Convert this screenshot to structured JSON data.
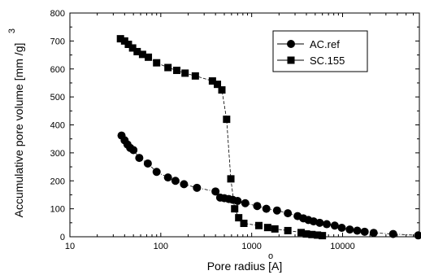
{
  "chart_data": {
    "type": "scatter",
    "x_scale": "log",
    "xlim": [
      10,
      70000
    ],
    "ylim": [
      0,
      800
    ],
    "xlabel": "Pore radius [A]",
    "xlabel_accent": "o",
    "ylabel": "Accumulative pore volume [mm /g]",
    "ylabel_superscript": "3",
    "x_ticks": [
      {
        "value": 10,
        "label": "10"
      },
      {
        "value": 100,
        "label": "100"
      },
      {
        "value": 1000,
        "label": "1000"
      },
      {
        "value": 10000,
        "label": "10000"
      }
    ],
    "y_ticks": [
      {
        "value": 0,
        "label": "0"
      },
      {
        "value": 100,
        "label": "100"
      },
      {
        "value": 200,
        "label": "200"
      },
      {
        "value": 300,
        "label": "300"
      },
      {
        "value": 400,
        "label": "400"
      },
      {
        "value": 500,
        "label": "500"
      },
      {
        "value": 600,
        "label": "600"
      },
      {
        "value": 700,
        "label": "700"
      },
      {
        "value": 800,
        "label": "800"
      }
    ],
    "grid": false,
    "legend_position": "top-right",
    "series": [
      {
        "name": "AC.ref",
        "marker": "circle",
        "line_style": "dash-dot",
        "color": "#000000",
        "x": [
          37,
          40,
          43,
          46,
          50,
          58,
          72,
          90,
          120,
          145,
          180,
          250,
          400,
          450,
          500,
          560,
          620,
          700,
          850,
          1150,
          1450,
          1900,
          2500,
          3200,
          3700,
          4200,
          4800,
          5600,
          6700,
          8200,
          9800,
          12000,
          14500,
          17500,
          22000,
          36000,
          68000
        ],
        "y": [
          362,
          345,
          330,
          318,
          310,
          282,
          262,
          232,
          212,
          200,
          188,
          175,
          162,
          140,
          138,
          135,
          132,
          128,
          120,
          110,
          100,
          94,
          84,
          74,
          66,
          60,
          55,
          50,
          45,
          40,
          32,
          26,
          22,
          18,
          14,
          10,
          5
        ]
      },
      {
        "name": "SC.155",
        "marker": "square",
        "line_style": "dash",
        "color": "#000000",
        "x": [
          36,
          40,
          44,
          49,
          55,
          63,
          73,
          90,
          120,
          150,
          185,
          240,
          370,
          420,
          470,
          530,
          590,
          650,
          720,
          820,
          1200,
          1500,
          1800,
          2500,
          3500,
          4000,
          4600,
          5300,
          6000
        ],
        "y": [
          708,
          700,
          688,
          675,
          662,
          652,
          642,
          622,
          605,
          595,
          585,
          575,
          557,
          545,
          525,
          420,
          207,
          100,
          68,
          48,
          40,
          33,
          28,
          22,
          15,
          10,
          8,
          6,
          4
        ]
      }
    ]
  }
}
